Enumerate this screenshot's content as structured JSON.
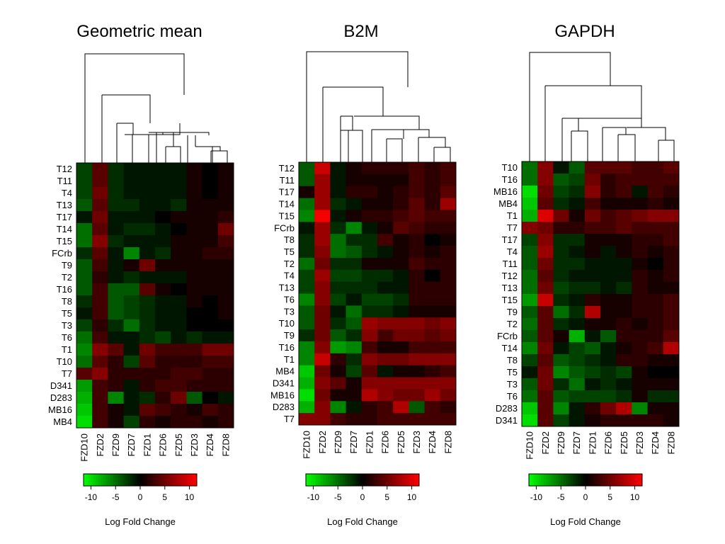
{
  "chart_data": [
    {
      "type": "heatmap",
      "title": "Geometric mean",
      "columns": [
        "FZD10",
        "FZD2",
        "FZD9",
        "FZD7",
        "FZD1",
        "FZD6",
        "FZD5",
        "FZD3",
        "FZD4",
        "FZD8"
      ],
      "rows": [
        "T12",
        "T11",
        "T4",
        "T13",
        "T17",
        "T14",
        "T15",
        "FCrb",
        "T9",
        "T2",
        "T16",
        "T8",
        "T5",
        "T3",
        "T6",
        "T1",
        "T10",
        "T7",
        "D341",
        "D283",
        "MB16",
        "MB4"
      ],
      "values": [
        [
          -3,
          4,
          -2,
          -1,
          -1,
          -1,
          -1,
          1,
          0,
          1
        ],
        [
          -3,
          4,
          -2,
          -1,
          -1,
          -1,
          -1,
          1,
          0,
          1
        ],
        [
          -3,
          5,
          -2,
          -1,
          -1,
          -1,
          -1,
          1,
          0,
          1
        ],
        [
          -4,
          4,
          -2,
          -2,
          -1,
          -1,
          -2,
          1,
          1,
          1
        ],
        [
          -1,
          5,
          -1,
          -1,
          -1,
          0,
          1,
          1,
          1,
          2
        ],
        [
          -5,
          4,
          -1,
          -2,
          -2,
          -1,
          0,
          1,
          1,
          5
        ],
        [
          -5,
          6,
          -2,
          -1,
          -1,
          -1,
          1,
          1,
          1,
          3
        ],
        [
          -2,
          4,
          -1,
          -6,
          -1,
          -2,
          1,
          1,
          2,
          2
        ],
        [
          -4,
          3,
          -1,
          1,
          5,
          1,
          1,
          1,
          1,
          1
        ],
        [
          -4,
          2,
          -1,
          -2,
          -1,
          -1,
          -1,
          1,
          1,
          1
        ],
        [
          -4,
          3,
          -4,
          -4,
          4,
          1,
          0,
          1,
          1,
          1
        ],
        [
          -2,
          3,
          -4,
          -3,
          -2,
          -1,
          -1,
          1,
          0,
          1
        ],
        [
          -1,
          3,
          -4,
          -3,
          -2,
          -1,
          -1,
          0,
          0,
          1
        ],
        [
          -3,
          2,
          -2,
          -5,
          -2,
          -1,
          -1,
          0,
          0,
          0
        ],
        [
          -5,
          3,
          -1,
          -1,
          -2,
          -3,
          -1,
          -2,
          -1,
          -1
        ],
        [
          -6,
          6,
          4,
          -1,
          5,
          3,
          3,
          3,
          5,
          5
        ],
        [
          -5,
          4,
          2,
          -3,
          4,
          2,
          2,
          2,
          3,
          3
        ],
        [
          4,
          6,
          2,
          2,
          2,
          2,
          3,
          3,
          2,
          2
        ],
        [
          -7,
          3,
          2,
          -1,
          2,
          3,
          3,
          2,
          2,
          2
        ],
        [
          -8,
          3,
          -6,
          -1,
          -2,
          2,
          5,
          -4,
          0,
          -1
        ],
        [
          -9,
          3,
          1,
          -1,
          4,
          3,
          2,
          1,
          3,
          2
        ],
        [
          -10,
          3,
          1,
          -3,
          2,
          1,
          2,
          2,
          1,
          2
        ]
      ]
    },
    {
      "type": "heatmap",
      "title": "B2M",
      "columns": [
        "FZD10",
        "FZD2",
        "FZD9",
        "FZD7",
        "FZD1",
        "FZD6",
        "FZD5",
        "FZD3",
        "FZD4",
        "FZD8"
      ],
      "rows": [
        "T12",
        "T11",
        "T17",
        "T14",
        "T15",
        "FCrb",
        "T8",
        "T5",
        "T2",
        "T4",
        "T13",
        "T6",
        "T3",
        "T10",
        "T9",
        "T16",
        "T1",
        "MB4",
        "D341",
        "MB16",
        "D283",
        "T7"
      ],
      "values": [
        [
          -4,
          9,
          -1,
          1,
          2,
          2,
          2,
          3,
          2,
          3
        ],
        [
          -4,
          7,
          -1,
          1,
          1,
          1,
          1,
          3,
          2,
          3
        ],
        [
          1,
          7,
          -1,
          2,
          2,
          1,
          2,
          3,
          2,
          4
        ],
        [
          -5,
          7,
          -2,
          -1,
          1,
          1,
          2,
          4,
          2,
          7
        ],
        [
          -6,
          11,
          -1,
          1,
          2,
          2,
          3,
          4,
          3,
          3
        ],
        [
          -1,
          7,
          -2,
          -6,
          -1,
          1,
          4,
          3,
          2,
          2
        ],
        [
          -2,
          7,
          -5,
          -2,
          -2,
          3,
          1,
          2,
          0,
          1
        ],
        [
          -2,
          6,
          -5,
          -4,
          -2,
          -1,
          1,
          2,
          1,
          2
        ],
        [
          -5,
          5,
          -2,
          -2,
          1,
          1,
          1,
          3,
          2,
          2
        ],
        [
          -3,
          7,
          -3,
          -3,
          -2,
          -2,
          -1,
          2,
          0,
          2
        ],
        [
          -3,
          6,
          -2,
          -2,
          -2,
          -1,
          -1,
          2,
          2,
          2
        ],
        [
          -6,
          6,
          -3,
          -1,
          -3,
          -3,
          -2,
          2,
          2,
          2
        ],
        [
          -4,
          5,
          -1,
          -5,
          -2,
          -2,
          -1,
          1,
          1,
          1
        ],
        [
          -4,
          5,
          -2,
          -4,
          7,
          6,
          6,
          6,
          5,
          6
        ],
        [
          -2,
          5,
          -4,
          -2,
          6,
          3,
          5,
          5,
          4,
          5
        ],
        [
          -6,
          6,
          -7,
          -6,
          3,
          1,
          1,
          3,
          3,
          3
        ],
        [
          -6,
          9,
          2,
          -2,
          6,
          5,
          5,
          6,
          6,
          6
        ],
        [
          -9,
          5,
          1,
          -3,
          4,
          -1,
          1,
          1,
          2,
          3
        ],
        [
          -8,
          6,
          4,
          1,
          6,
          6,
          6,
          6,
          6,
          6
        ],
        [
          -10,
          5,
          1,
          1,
          8,
          6,
          5,
          5,
          7,
          5
        ],
        [
          -8,
          6,
          -6,
          -1,
          2,
          3,
          8,
          -4,
          3,
          2
        ],
        [
          6,
          6,
          3,
          2,
          2,
          3,
          3,
          3,
          3,
          3
        ]
      ]
    },
    {
      "type": "heatmap",
      "title": "GAPDH",
      "columns": [
        "FZD10",
        "FZD2",
        "FZD9",
        "FZD7",
        "FZD1",
        "FZD6",
        "FZD5",
        "FZD3",
        "FZD4",
        "FZD8"
      ],
      "rows": [
        "T10",
        "T16",
        "MB16",
        "MB4",
        "T1",
        "T7",
        "T17",
        "T4",
        "T11",
        "T12",
        "T13",
        "T15",
        "T9",
        "T2",
        "FCrb",
        "T14",
        "T8",
        "T5",
        "T3",
        "T6",
        "D283",
        "D341"
      ],
      "values": [
        [
          -5,
          6,
          -1,
          -4,
          4,
          4,
          4,
          3,
          3,
          4
        ],
        [
          -5,
          6,
          -4,
          -3,
          5,
          2,
          3,
          3,
          3,
          3
        ],
        [
          -10,
          5,
          -3,
          -2,
          6,
          2,
          3,
          -1,
          3,
          2
        ],
        [
          -9,
          4,
          -2,
          -1,
          3,
          1,
          1,
          1,
          2,
          1
        ],
        [
          -8,
          10,
          5,
          1,
          5,
          3,
          4,
          5,
          6,
          6
        ],
        [
          6,
          5,
          2,
          2,
          3,
          3,
          4,
          3,
          3,
          3
        ],
        [
          -3,
          6,
          -2,
          -2,
          1,
          1,
          1,
          2,
          2,
          3
        ],
        [
          -4,
          7,
          -2,
          -1,
          1,
          -1,
          1,
          2,
          1,
          2
        ],
        [
          -4,
          5,
          -2,
          -2,
          -1,
          -1,
          -1,
          1,
          0,
          2
        ],
        [
          -5,
          4,
          -2,
          -1,
          -1,
          -1,
          -1,
          2,
          1,
          2
        ],
        [
          -5,
          5,
          -3,
          -2,
          -2,
          -1,
          -2,
          2,
          1,
          1
        ],
        [
          -7,
          9,
          -2,
          -1,
          2,
          1,
          1,
          2,
          2,
          3
        ],
        [
          -4,
          4,
          -5,
          -2,
          8,
          1,
          1,
          2,
          2,
          3
        ],
        [
          -5,
          4,
          -2,
          -1,
          1,
          1,
          2,
          1,
          2,
          3
        ],
        [
          -4,
          4,
          1,
          -8,
          -1,
          -4,
          2,
          2,
          2,
          4
        ],
        [
          -6,
          5,
          -1,
          -3,
          -4,
          -1,
          1,
          2,
          3,
          8
        ],
        [
          -3,
          4,
          -4,
          -3,
          -2,
          -1,
          2,
          2,
          1,
          1
        ],
        [
          -1,
          5,
          -6,
          -4,
          -3,
          -2,
          -3,
          1,
          0,
          0
        ],
        [
          -4,
          5,
          -2,
          -5,
          -1,
          -2,
          -1,
          1,
          1,
          1
        ],
        [
          -5,
          4,
          -4,
          -3,
          -3,
          -3,
          -2,
          1,
          -2,
          -2
        ],
        [
          -9,
          4,
          -6,
          -1,
          2,
          5,
          8,
          -6,
          1,
          1
        ],
        [
          -10,
          4,
          -3,
          -1,
          1,
          2,
          2,
          2,
          2,
          1
        ]
      ]
    }
  ],
  "scale": {
    "label": "Log Fold Change",
    "ticks": [
      "-10",
      "-5",
      "0",
      "5",
      "10"
    ],
    "tick_values": [
      -10,
      -5,
      0,
      5,
      10
    ],
    "range": [
      -11.5,
      11.5
    ],
    "low_color": "#00ff00",
    "mid_color": "#000000",
    "high_color": "#ff0000"
  }
}
